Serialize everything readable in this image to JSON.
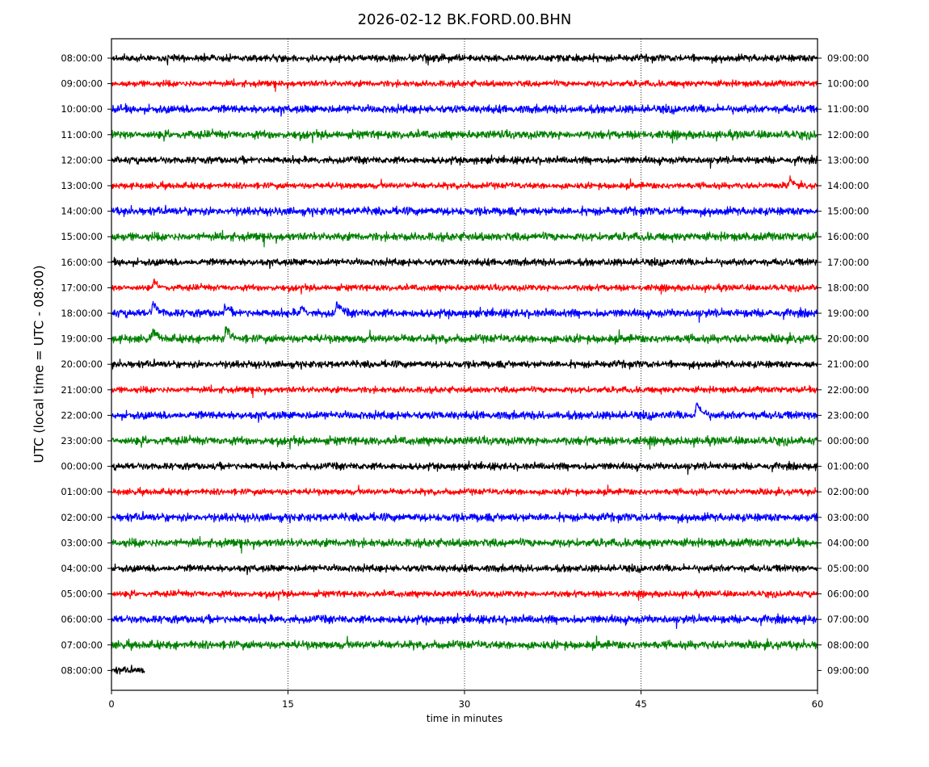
{
  "chart_data": {
    "type": "line",
    "title": "2026-02-12 BK.FORD.00.BHN",
    "xlabel": "time in minutes",
    "ylabel": "UTC (local time = UTC - 08:00)",
    "xlim": [
      0,
      60
    ],
    "x_ticks": [
      "0",
      "15",
      "30",
      "45",
      "60"
    ],
    "grid": "vertical dotted lines at 15, 30, 45",
    "left_ticks": [
      "08:00:00",
      "09:00:00",
      "10:00:00",
      "11:00:00",
      "12:00:00",
      "13:00:00",
      "14:00:00",
      "15:00:00",
      "16:00:00",
      "17:00:00",
      "18:00:00",
      "19:00:00",
      "20:00:00",
      "21:00:00",
      "22:00:00",
      "23:00:00",
      "00:00:00",
      "01:00:00",
      "02:00:00",
      "03:00:00",
      "04:00:00",
      "05:00:00",
      "06:00:00",
      "07:00:00",
      "08:00:00"
    ],
    "right_ticks": [
      "09:00:00",
      "10:00:00",
      "11:00:00",
      "12:00:00",
      "13:00:00",
      "14:00:00",
      "15:00:00",
      "16:00:00",
      "17:00:00",
      "18:00:00",
      "19:00:00",
      "20:00:00",
      "21:00:00",
      "22:00:00",
      "23:00:00",
      "00:00:00",
      "01:00:00",
      "02:00:00",
      "03:00:00",
      "04:00:00",
      "05:00:00",
      "06:00:00",
      "07:00:00",
      "08:00:00",
      "09:00:00"
    ],
    "trace_colors": [
      "#000000",
      "#ff0000",
      "#0000ff",
      "#008000"
    ],
    "last_trace_duration_minutes": 2.8,
    "events": [
      {
        "trace_hour": "17:00:00",
        "minute": 3.4,
        "amplitude": 1.4
      },
      {
        "trace_hour": "18:00:00",
        "minute": 3.4,
        "amplitude": 2.4
      },
      {
        "trace_hour": "18:00:00",
        "minute": 9.5,
        "amplitude": 1.6
      },
      {
        "trace_hour": "18:00:00",
        "minute": 16.0,
        "amplitude": 1.2
      },
      {
        "trace_hour": "18:00:00",
        "minute": 19.0,
        "amplitude": 1.8
      },
      {
        "trace_hour": "19:00:00",
        "minute": 3.4,
        "amplitude": 2.0
      },
      {
        "trace_hour": "19:00:00",
        "minute": 9.6,
        "amplitude": 2.4
      },
      {
        "trace_hour": "22:00:00",
        "minute": 49.6,
        "amplitude": 2.6
      },
      {
        "trace_hour": "13:00:00",
        "minute": 57.5,
        "amplitude": 1.5
      }
    ]
  }
}
